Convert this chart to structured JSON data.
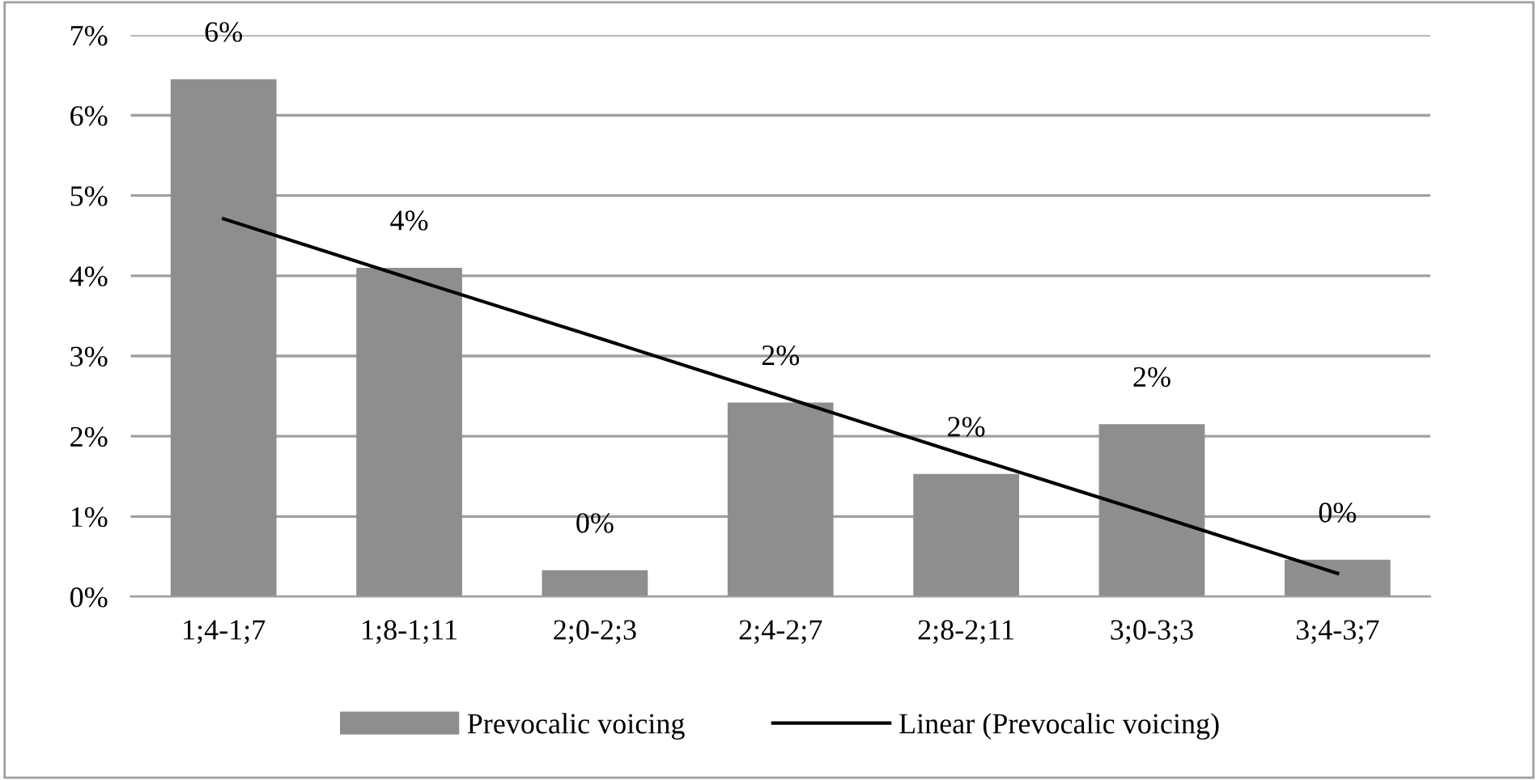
{
  "chart_data": {
    "type": "bar",
    "categories": [
      "1;4-1;7",
      "1;8-1;11",
      "2;0-2;3",
      "2;4-2;7",
      "2;8-2;11",
      "3;0-3;3",
      "3;4-3;7"
    ],
    "series": [
      {
        "name": "Prevocalic voicing",
        "color": "#8e8e8e",
        "values": [
          6.45,
          4.1,
          0.33,
          2.42,
          1.53,
          2.15,
          0.46
        ],
        "value_labels": [
          "6%",
          "4%",
          "0%",
          "2%",
          "2%",
          "2%",
          "0%"
        ]
      },
      {
        "name": "Linear (Prevocalic voicing)",
        "type": "line",
        "color": "#000000",
        "values": [
          4.71,
          3.97,
          3.24,
          2.5,
          1.76,
          1.03,
          0.29
        ]
      }
    ],
    "ylim": [
      0,
      7
    ],
    "yticks": [
      {
        "value": 0,
        "label": "0%"
      },
      {
        "value": 1,
        "label": "1%"
      },
      {
        "value": 2,
        "label": "2%"
      },
      {
        "value": 3,
        "label": "3%"
      },
      {
        "value": 4,
        "label": "4%"
      },
      {
        "value": 5,
        "label": "5%"
      },
      {
        "value": 6,
        "label": "6%"
      },
      {
        "value": 7,
        "label": "7%"
      }
    ],
    "grid": "y",
    "legend": "bottom",
    "marker": "none",
    "line_style": "solid"
  }
}
